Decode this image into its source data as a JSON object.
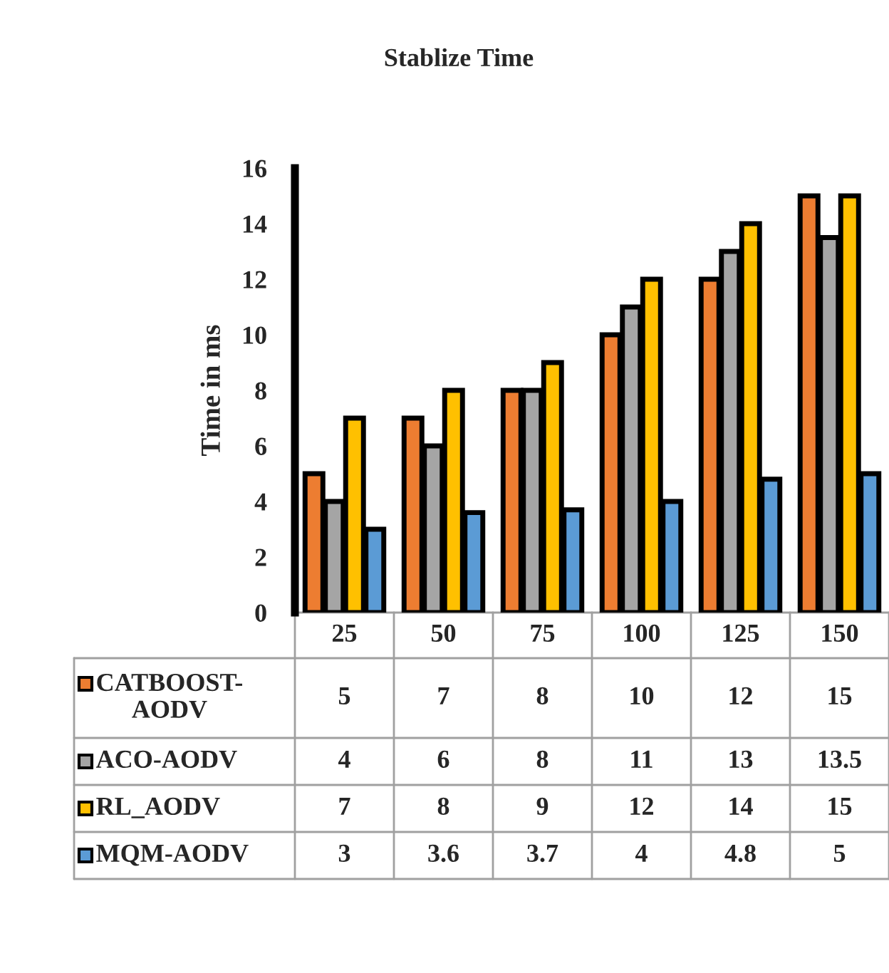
{
  "chart_data": {
    "type": "bar",
    "title": "Stablize Time",
    "ylabel": "Time in ms",
    "categories": [
      "25",
      "50",
      "75",
      "100",
      "125",
      "150"
    ],
    "series": [
      {
        "name": "CATBOOST-AODV",
        "color": "#ed7d31",
        "values": [
          5,
          7,
          8,
          10,
          12,
          15
        ]
      },
      {
        "name": "ACO-AODV",
        "color": "#a5a5a5",
        "values": [
          4,
          6,
          8,
          11,
          13,
          13.5
        ]
      },
      {
        "name": "RL_AODV",
        "color": "#ffc000",
        "values": [
          7,
          8,
          9,
          12,
          14,
          15
        ]
      },
      {
        "name": "MQM-AODV",
        "color": "#5b9bd5",
        "values": [
          3,
          3.6,
          3.7,
          4,
          4.8,
          5
        ]
      }
    ],
    "ylim": [
      0,
      16
    ],
    "yticks": [
      0,
      2,
      4,
      6,
      8,
      10,
      12,
      14,
      16
    ],
    "data_labels": true,
    "legend": "bottom",
    "grid": false
  }
}
